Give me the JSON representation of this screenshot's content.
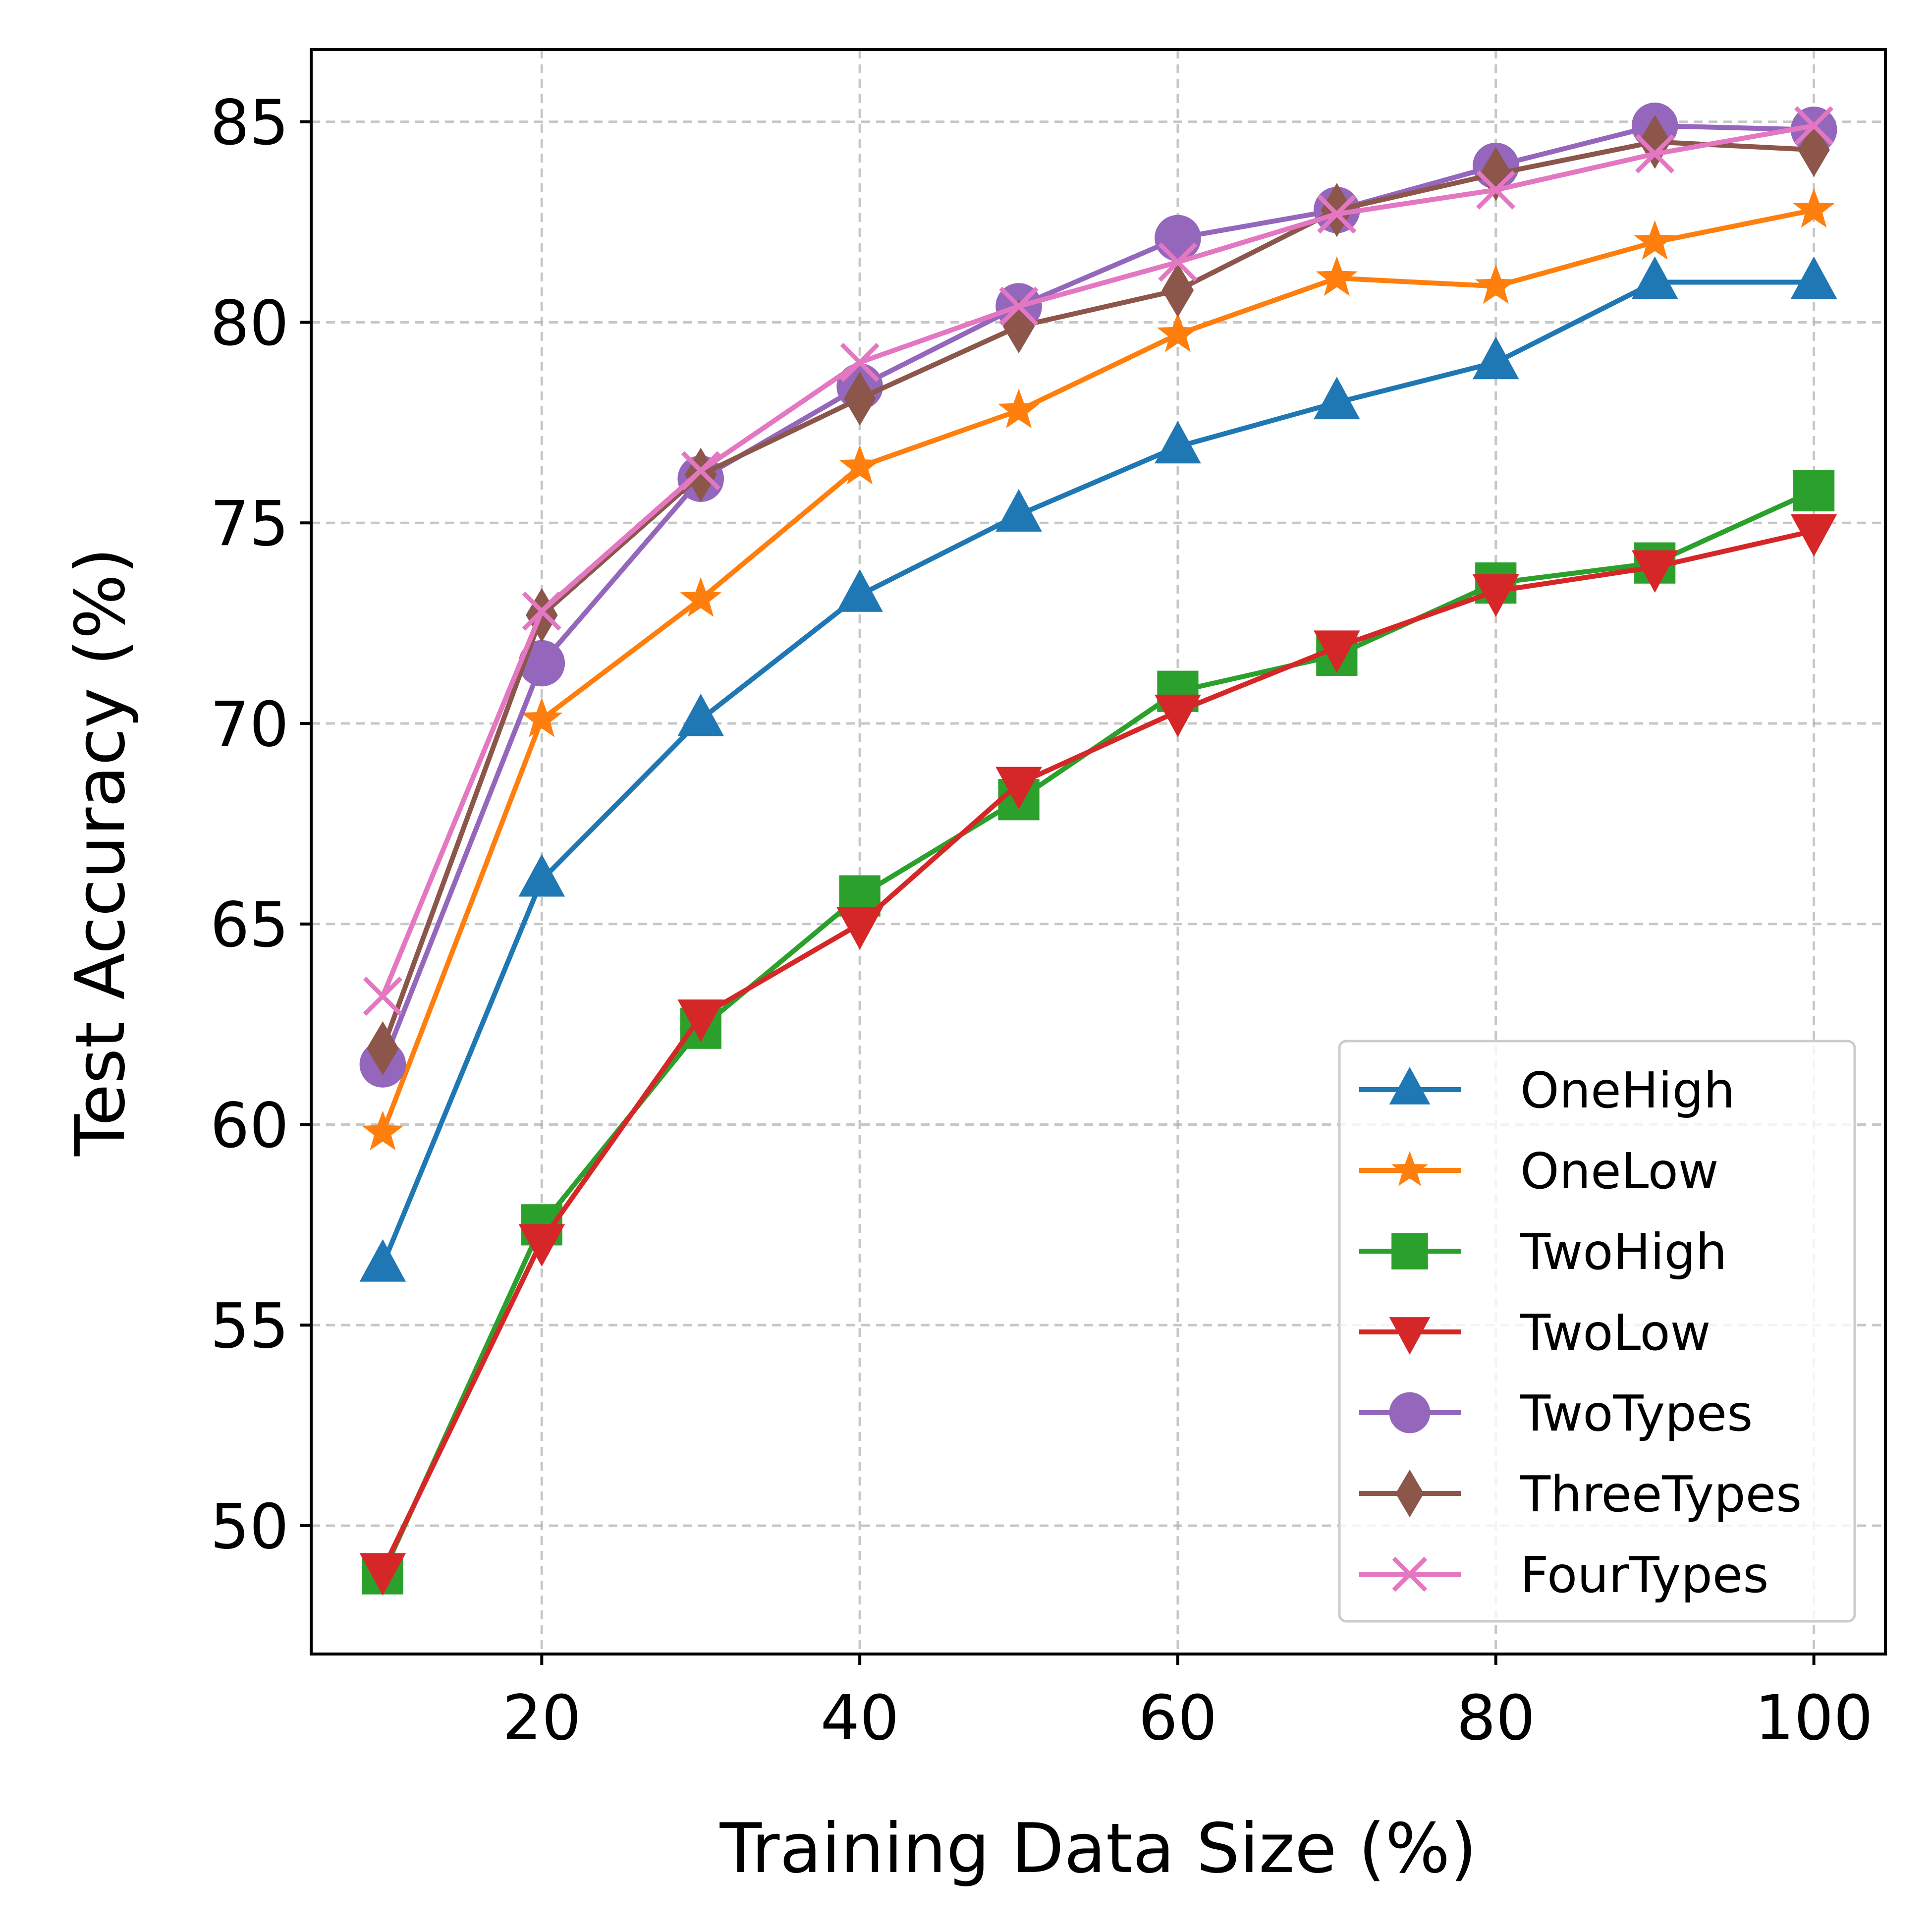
{
  "chart_data": {
    "type": "line",
    "title": "",
    "xlabel": "Training Data Size (%)",
    "ylabel": "Test Accuracy (%)",
    "x": [
      10,
      20,
      30,
      40,
      50,
      60,
      70,
      80,
      90,
      100
    ],
    "xlim": [
      5.5,
      104.5
    ],
    "ylim": [
      46.8,
      86.8
    ],
    "xticks": [
      20,
      40,
      60,
      80,
      100
    ],
    "yticks": [
      50,
      55,
      60,
      65,
      70,
      75,
      80,
      85
    ],
    "grid": true,
    "legend_position": "lower-right",
    "series": [
      {
        "name": "OneHigh",
        "color": "#1f77b4",
        "marker": "triangle-up",
        "values": [
          56.5,
          66.1,
          70.1,
          73.2,
          75.2,
          76.9,
          78.0,
          79.0,
          81.0,
          81.0
        ]
      },
      {
        "name": "OneLow",
        "color": "#ff7f0e",
        "marker": "star",
        "values": [
          59.8,
          70.1,
          73.1,
          76.4,
          77.8,
          79.7,
          81.1,
          80.9,
          82.0,
          82.8
        ]
      },
      {
        "name": "TwoHigh",
        "color": "#2ca02c",
        "marker": "square",
        "values": [
          48.8,
          57.5,
          62.4,
          65.7,
          68.1,
          70.8,
          71.7,
          73.5,
          74.0,
          75.8
        ]
      },
      {
        "name": "TwoLow",
        "color": "#d62728",
        "marker": "triangle-down",
        "values": [
          48.9,
          57.1,
          62.7,
          65.0,
          68.5,
          70.3,
          71.9,
          73.3,
          73.9,
          74.8
        ]
      },
      {
        "name": "TwoTypes",
        "color": "#9467bd",
        "marker": "circle",
        "values": [
          61.5,
          71.5,
          76.1,
          78.4,
          80.4,
          82.1,
          82.8,
          83.9,
          84.9,
          84.8
        ]
      },
      {
        "name": "ThreeTypes",
        "color": "#8c564b",
        "marker": "diamond",
        "values": [
          61.9,
          72.7,
          76.2,
          78.1,
          79.9,
          80.8,
          82.8,
          83.7,
          84.5,
          84.3
        ]
      },
      {
        "name": "FourTypes",
        "color": "#e377c2",
        "marker": "x",
        "values": [
          63.2,
          72.8,
          76.3,
          79.0,
          80.4,
          81.5,
          82.7,
          83.3,
          84.2,
          84.9
        ]
      }
    ]
  }
}
